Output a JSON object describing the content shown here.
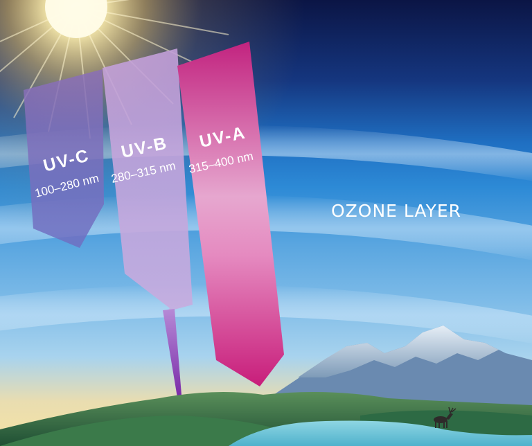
{
  "ozone_label": "OZONE LAYER",
  "rays": [
    {
      "name": "UV-C",
      "range": "100–280 nm",
      "color": "#7b6fbd"
    },
    {
      "name": "UV-B",
      "range": "280–315 nm",
      "color": "#c6a7e0"
    },
    {
      "name": "UV-A",
      "range": "315–400 nm",
      "color": "#d5247e"
    }
  ],
  "colors": {
    "sky_top": "#0b1545",
    "sky_mid": "#1a74c6",
    "sky_low": "#8cc4ea",
    "horizon": "#f2dca0",
    "sun": "#fff6c8",
    "hills": "#2f6b3e",
    "lake": "#6cc6d9"
  },
  "icons": [
    "sun-glare",
    "mountains",
    "reindeer-silhouette",
    "lake"
  ]
}
